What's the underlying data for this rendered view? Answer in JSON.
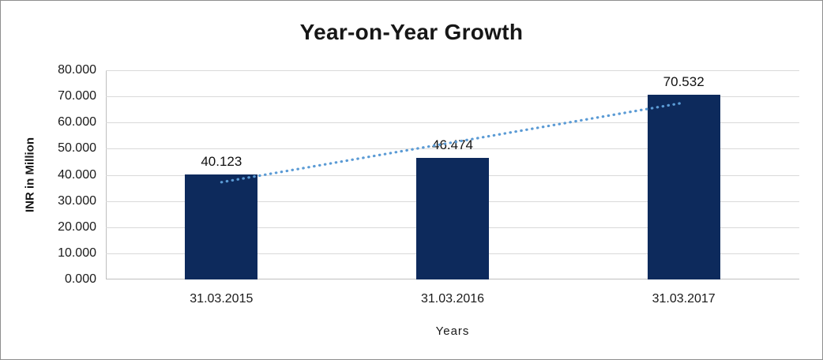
{
  "chart_data": {
    "type": "bar",
    "title": "Year-on-Year Growth",
    "xlabel": "Years",
    "ylabel": "INR in Million",
    "categories": [
      "31.03.2015",
      "31.03.2016",
      "31.03.2017"
    ],
    "values": [
      40.123,
      46.474,
      70.532
    ],
    "value_labels": [
      "40.123",
      "46.474",
      "70.532"
    ],
    "ylim": [
      0,
      80
    ],
    "y_tick_step": 10,
    "y_tick_labels": [
      "0.000",
      "10.000",
      "20.000",
      "30.000",
      "40.000",
      "50.000",
      "60.000",
      "70.000",
      "80.000"
    ],
    "grid": "horizontal",
    "legend": "none",
    "bar_color": "#0d2a5c",
    "gridline_color": "#d9d9d9",
    "axis_color": "#bfbfbf",
    "trendline": {
      "style": "dotted",
      "color": "#5b9bd5",
      "x_span": [
        0,
        2
      ],
      "values": [
        37.2,
        67.6
      ]
    }
  }
}
